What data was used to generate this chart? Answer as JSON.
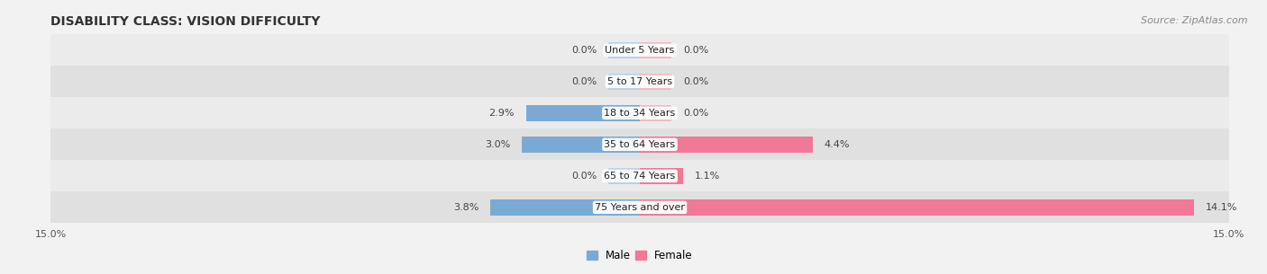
{
  "title": "DISABILITY CLASS: VISION DIFFICULTY",
  "source": "Source: ZipAtlas.com",
  "categories": [
    "Under 5 Years",
    "5 to 17 Years",
    "18 to 34 Years",
    "35 to 64 Years",
    "65 to 74 Years",
    "75 Years and over"
  ],
  "male_values": [
    0.0,
    0.0,
    2.9,
    3.0,
    0.0,
    3.8
  ],
  "female_values": [
    0.0,
    0.0,
    0.0,
    4.4,
    1.1,
    14.1
  ],
  "male_color": "#7aaad4",
  "female_color": "#f07898",
  "male_light_color": "#b8d0e8",
  "female_light_color": "#f0b8c4",
  "row_bg_odd": "#ebebeb",
  "row_bg_even": "#e0e0e0",
  "xlim": 15.0,
  "min_bar_display": 0.8,
  "title_fontsize": 10,
  "source_fontsize": 8,
  "label_fontsize": 8,
  "category_fontsize": 8,
  "legend_fontsize": 8.5,
  "bar_height": 0.52,
  "background_color": "#f2f2f2"
}
